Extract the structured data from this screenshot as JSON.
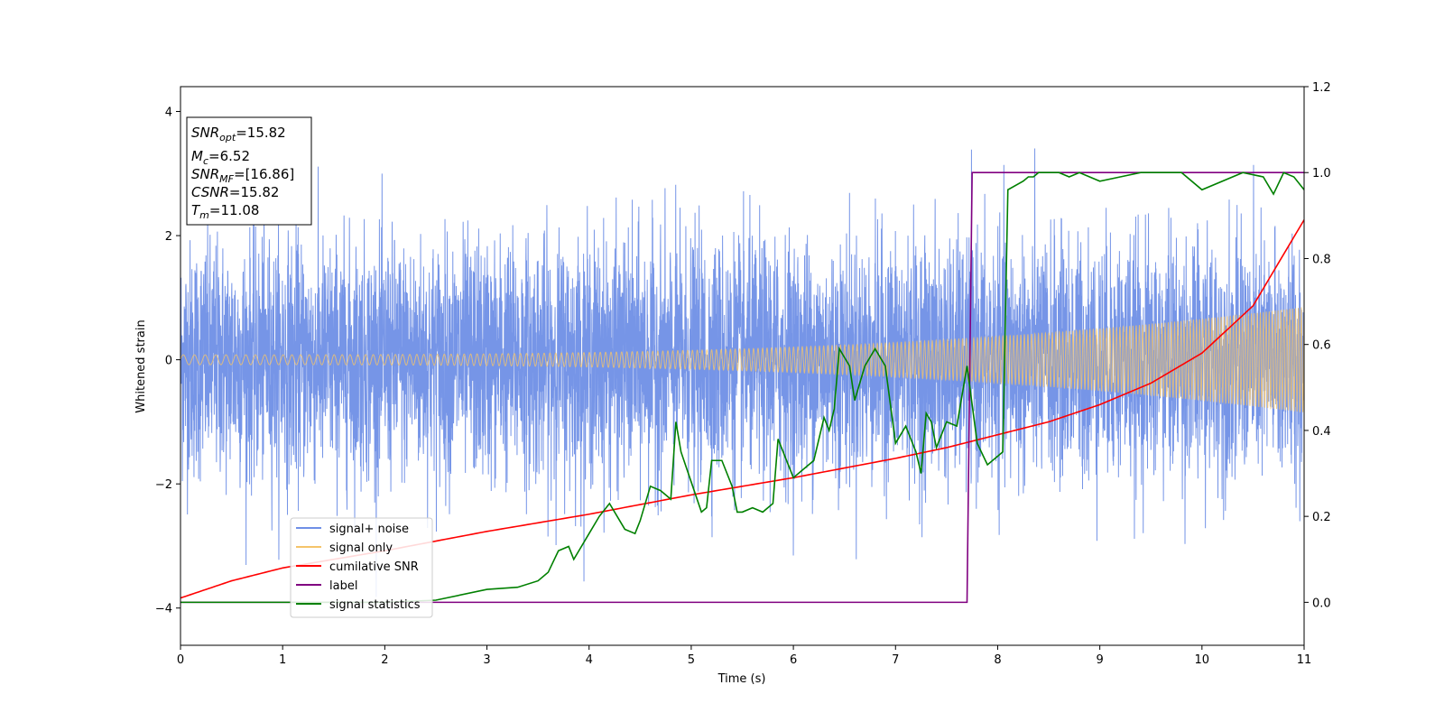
{
  "chart_data": {
    "type": "line",
    "title": "",
    "xlabel": "Time (s)",
    "ylabel": "Whitened strain",
    "y2label": "",
    "xlim": [
      0,
      11
    ],
    "ylim": [
      -4.6,
      4.4
    ],
    "y2lim": [
      -0.1,
      1.2
    ],
    "xticks": [
      "0",
      "1",
      "2",
      "3",
      "4",
      "5",
      "6",
      "7",
      "8",
      "9",
      "10",
      "11"
    ],
    "yticks": [
      "4",
      "2",
      "0",
      "−2",
      "−4"
    ],
    "y2ticks": [
      "1.2",
      "1.0",
      "0.8",
      "0.6",
      "0.4",
      "0.2",
      "0.0"
    ],
    "grid": false,
    "legend_position": "lower-left",
    "annotation_box": {
      "snr_opt": {
        "base": "SNR",
        "sub": "opt",
        "value": "=15.82"
      },
      "mc": {
        "base": "M",
        "sub": "c",
        "value": "=6.52"
      },
      "snr_mf": {
        "base": "SNR",
        "sub": "MF",
        "value": "=[16.86]"
      },
      "csnr": {
        "base": "CSNR",
        "sub": "",
        "value": "=15.82"
      },
      "tm": {
        "base": "T",
        "sub": "m",
        "value": "=11.08"
      }
    },
    "series": [
      {
        "name": "signal+ noise",
        "color": "#6f8fe6",
        "axis": "left",
        "kind": "noise",
        "noise_sigma": 1.0,
        "range_approx": [
          -4.2,
          4.0
        ]
      },
      {
        "name": "signal only",
        "color": "#f5c46a",
        "axis": "left",
        "kind": "chirp",
        "amplitude_start": 0.08,
        "amplitude_end": 0.85,
        "t_end": 11
      },
      {
        "name": "cumilative SNR",
        "color": "#ff0000",
        "axis": "right",
        "x": [
          0,
          0.5,
          1,
          2,
          3,
          4,
          5,
          6,
          7,
          7.5,
          8,
          8.5,
          9,
          9.5,
          10,
          10.5,
          11
        ],
        "y": [
          0.01,
          0.05,
          0.08,
          0.12,
          0.165,
          0.205,
          0.25,
          0.29,
          0.335,
          0.36,
          0.39,
          0.42,
          0.46,
          0.51,
          0.58,
          0.69,
          0.89
        ]
      },
      {
        "name": "label",
        "color": "#800080",
        "axis": "right",
        "x": [
          0,
          7.7,
          7.75,
          11
        ],
        "y": [
          0.0,
          0.0,
          1.0,
          1.0
        ]
      },
      {
        "name": "signal statistics",
        "color": "#008000",
        "axis": "right",
        "x": [
          0,
          1,
          2,
          2.5,
          3,
          3.3,
          3.5,
          3.6,
          3.7,
          3.8,
          3.85,
          3.9,
          4.0,
          4.1,
          4.2,
          4.3,
          4.35,
          4.45,
          4.5,
          4.6,
          4.7,
          4.8,
          4.85,
          4.9,
          5.0,
          5.1,
          5.15,
          5.2,
          5.3,
          5.4,
          5.45,
          5.5,
          5.6,
          5.7,
          5.8,
          5.85,
          5.9,
          6.0,
          6.1,
          6.2,
          6.3,
          6.35,
          6.4,
          6.45,
          6.5,
          6.55,
          6.6,
          6.7,
          6.8,
          6.85,
          6.9,
          7.0,
          7.1,
          7.2,
          7.25,
          7.3,
          7.35,
          7.4,
          7.5,
          7.6,
          7.7,
          7.8,
          7.9,
          8.0,
          8.05,
          8.1,
          8.25,
          8.3,
          8.35,
          8.4,
          8.5,
          8.6,
          8.7,
          8.8,
          9.0,
          9.2,
          9.4,
          9.6,
          9.8,
          10.0,
          10.4,
          10.6,
          10.7,
          10.8,
          10.9,
          11.0
        ],
        "y": [
          0.0,
          0.0,
          0.0,
          0.005,
          0.03,
          0.035,
          0.05,
          0.07,
          0.12,
          0.13,
          0.1,
          0.12,
          0.16,
          0.2,
          0.23,
          0.19,
          0.17,
          0.16,
          0.19,
          0.27,
          0.26,
          0.24,
          0.42,
          0.35,
          0.28,
          0.21,
          0.22,
          0.33,
          0.33,
          0.27,
          0.21,
          0.21,
          0.22,
          0.21,
          0.23,
          0.38,
          0.35,
          0.29,
          0.31,
          0.33,
          0.43,
          0.4,
          0.45,
          0.59,
          0.57,
          0.55,
          0.47,
          0.55,
          0.59,
          0.57,
          0.55,
          0.37,
          0.41,
          0.35,
          0.3,
          0.44,
          0.42,
          0.36,
          0.42,
          0.41,
          0.55,
          0.37,
          0.32,
          0.34,
          0.35,
          0.96,
          0.98,
          0.99,
          0.99,
          1.0,
          1.0,
          1.0,
          0.99,
          1.0,
          0.98,
          0.99,
          1.0,
          1.0,
          1.0,
          0.96,
          1.0,
          0.99,
          0.95,
          1.0,
          0.99,
          0.96
        ]
      }
    ]
  }
}
